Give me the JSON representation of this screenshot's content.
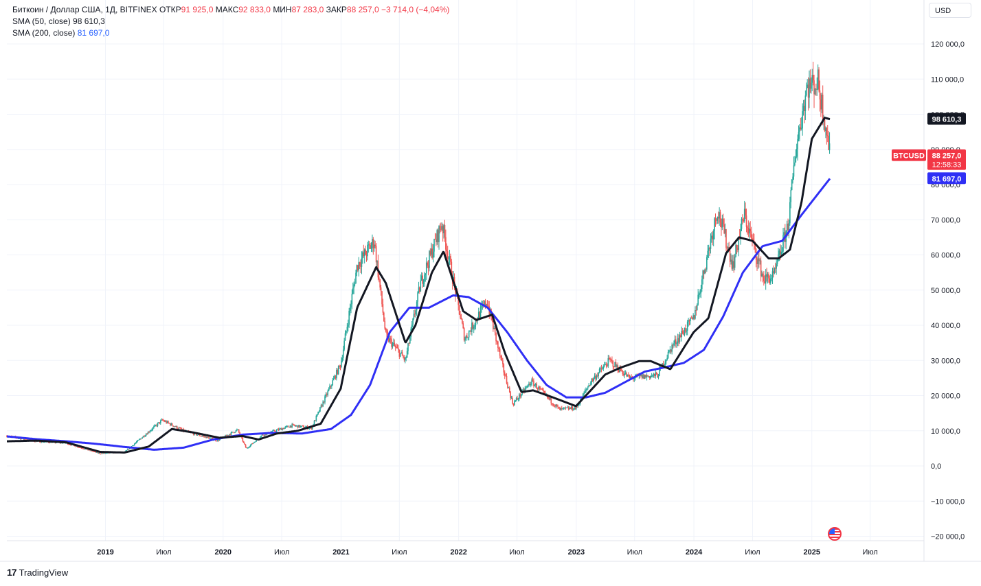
{
  "legend": {
    "symbol": "Биткоин / Доллар США, 1Д, BITFINEX",
    "open_label": "ОТКР",
    "open": "91 925,0",
    "high_label": "МАКС",
    "high": "92 833,0",
    "low_label": "МИН",
    "low": "87 283,0",
    "close_label": "ЗАКР",
    "close": "88 257,0",
    "change": "−3 714,0 (−4,04%)",
    "sma50_label": "SMA (50, close)",
    "sma50_value": "98 610,3",
    "sma200_label": "SMA (200, close)",
    "sma200_value": "81 697,0"
  },
  "currency_button": "USD",
  "brand": "TradingView",
  "badges": {
    "sma50": "98 610,3",
    "ticker": "BTCUSD",
    "price": "88 257,0",
    "countdown": "12:58:33",
    "sma200": "81 697,0"
  },
  "colors": {
    "up": "#26a69a",
    "down": "#ef5350",
    "sma50": "#131722",
    "sma200": "#2f2ff5",
    "price_badge": "#f23645",
    "grid": "#f0f3fa"
  },
  "chart_data": {
    "type": "line",
    "title": "Биткоин / Доллар США, 1Д, BITFINEX",
    "y_ticks": [
      "120 000,0",
      "110 000,0",
      "100 000,0",
      "90 000,0",
      "80 000,0",
      "70 000,0",
      "60 000,0",
      "50 000,0",
      "40 000,0",
      "30 000,0",
      "20 000,0",
      "10 000,0",
      "0,0",
      "−10 000,0",
      "−20 000,0"
    ],
    "y_tick_values": [
      120000,
      110000,
      100000,
      90000,
      80000,
      70000,
      60000,
      50000,
      40000,
      30000,
      20000,
      10000,
      0,
      -10000,
      -20000
    ],
    "x_ticks": [
      "2019",
      "Июл",
      "2020",
      "Июл",
      "2021",
      "Июл",
      "2022",
      "Июл",
      "2023",
      "Июл",
      "2024",
      "Июл",
      "2025",
      "Июл"
    ],
    "x_tick_dates": [
      "2019-01-01",
      "2019-07-01",
      "2020-01-01",
      "2020-07-01",
      "2021-01-01",
      "2021-07-01",
      "2022-01-01",
      "2022-07-01",
      "2023-01-01",
      "2023-07-01",
      "2024-01-01",
      "2024-07-01",
      "2025-01-01",
      "2025-07-01"
    ],
    "xlim": [
      "2018-03-01",
      "2025-12-15"
    ],
    "ylim": [
      -22000,
      130000
    ],
    "grid": true,
    "series": [
      {
        "name": "BTCUSD",
        "x": [
          "2018-03-01",
          "2018-06-01",
          "2018-09-01",
          "2018-12-15",
          "2019-03-01",
          "2019-06-26",
          "2019-09-01",
          "2019-12-15",
          "2020-02-15",
          "2020-03-13",
          "2020-05-01",
          "2020-08-01",
          "2020-10-01",
          "2020-12-31",
          "2021-02-20",
          "2021-04-14",
          "2021-05-20",
          "2021-07-20",
          "2021-09-05",
          "2021-11-10",
          "2022-01-20",
          "2022-03-30",
          "2022-05-15",
          "2022-06-18",
          "2022-08-15",
          "2022-11-10",
          "2022-12-31",
          "2023-02-15",
          "2023-04-14",
          "2023-06-15",
          "2023-09-10",
          "2023-10-25",
          "2023-12-31",
          "2024-03-14",
          "2024-05-01",
          "2024-06-05",
          "2024-08-05",
          "2024-09-06",
          "2024-10-20",
          "2024-11-12",
          "2024-12-17",
          "2025-01-20",
          "2025-02-15",
          "2025-02-26"
        ],
        "y": [
          8500,
          7000,
          6500,
          3500,
          3900,
          13000,
          10000,
          7200,
          10300,
          4900,
          8800,
          11500,
          10800,
          29000,
          57000,
          64000,
          37000,
          30000,
          52000,
          69000,
          36000,
          47000,
          29000,
          17600,
          24000,
          16000,
          16500,
          24000,
          30000,
          25000,
          25800,
          34000,
          42000,
          73000,
          57000,
          71500,
          53000,
          54000,
          69000,
          90000,
          108000,
          109000,
          96000,
          88257
        ]
      },
      {
        "name": "SMA (50, close)",
        "x": [
          "2018-03-01",
          "2018-06-01",
          "2018-09-01",
          "2018-12-15",
          "2019-03-01",
          "2019-05-15",
          "2019-07-26",
          "2019-10-01",
          "2019-12-20",
          "2020-03-01",
          "2020-04-20",
          "2020-06-15",
          "2020-08-20",
          "2020-10-30",
          "2020-12-31",
          "2021-02-20",
          "2021-04-20",
          "2021-05-20",
          "2021-07-20",
          "2021-08-20",
          "2021-10-10",
          "2021-11-15",
          "2022-01-15",
          "2022-02-25",
          "2022-04-15",
          "2022-05-25",
          "2022-07-15",
          "2022-08-20",
          "2022-10-20",
          "2022-12-31",
          "2023-02-15",
          "2023-04-01",
          "2023-05-20",
          "2023-07-15",
          "2023-08-20",
          "2023-10-20",
          "2023-12-31",
          "2024-02-15",
          "2024-04-10",
          "2024-05-20",
          "2024-07-01",
          "2024-08-20",
          "2024-09-20",
          "2024-10-25",
          "2024-11-30",
          "2025-01-01",
          "2025-02-10",
          "2025-02-26"
        ],
        "y": [
          7000,
          7200,
          6700,
          4000,
          3800,
          5500,
          10500,
          9500,
          8000,
          8500,
          7500,
          9200,
          10000,
          12000,
          22000,
          45000,
          56500,
          52000,
          35000,
          40000,
          55000,
          61000,
          44000,
          41500,
          43000,
          32000,
          21000,
          21500,
          19500,
          17000,
          21500,
          26000,
          28000,
          29800,
          29800,
          27500,
          38000,
          42000,
          60500,
          65000,
          64000,
          59000,
          59000,
          61500,
          75000,
          93000,
          99000,
          98610.3
        ]
      },
      {
        "name": "SMA (200, close)",
        "x": [
          "2018-03-01",
          "2018-06-01",
          "2018-09-01",
          "2018-12-01",
          "2019-03-01",
          "2019-06-01",
          "2019-09-01",
          "2019-12-01",
          "2020-03-01",
          "2020-06-01",
          "2020-09-01",
          "2020-12-01",
          "2021-02-01",
          "2021-04-01",
          "2021-06-01",
          "2021-08-01",
          "2021-10-01",
          "2021-12-15",
          "2022-02-01",
          "2022-04-01",
          "2022-06-01",
          "2022-08-01",
          "2022-10-01",
          "2022-12-01",
          "2023-02-01",
          "2023-04-01",
          "2023-06-01",
          "2023-08-01",
          "2023-10-01",
          "2023-12-01",
          "2024-02-01",
          "2024-04-01",
          "2024-06-01",
          "2024-08-01",
          "2024-10-01",
          "2024-12-01",
          "2025-02-26"
        ],
        "y": [
          8400,
          7600,
          7000,
          6300,
          5400,
          4600,
          5200,
          7500,
          8900,
          9400,
          9200,
          10500,
          14500,
          23000,
          38000,
          45000,
          45000,
          48500,
          48000,
          45000,
          38000,
          30000,
          23000,
          19500,
          19500,
          20800,
          23800,
          26800,
          28000,
          29300,
          33000,
          42500,
          55000,
          62500,
          64000,
          71500,
          81697
        ]
      }
    ]
  }
}
